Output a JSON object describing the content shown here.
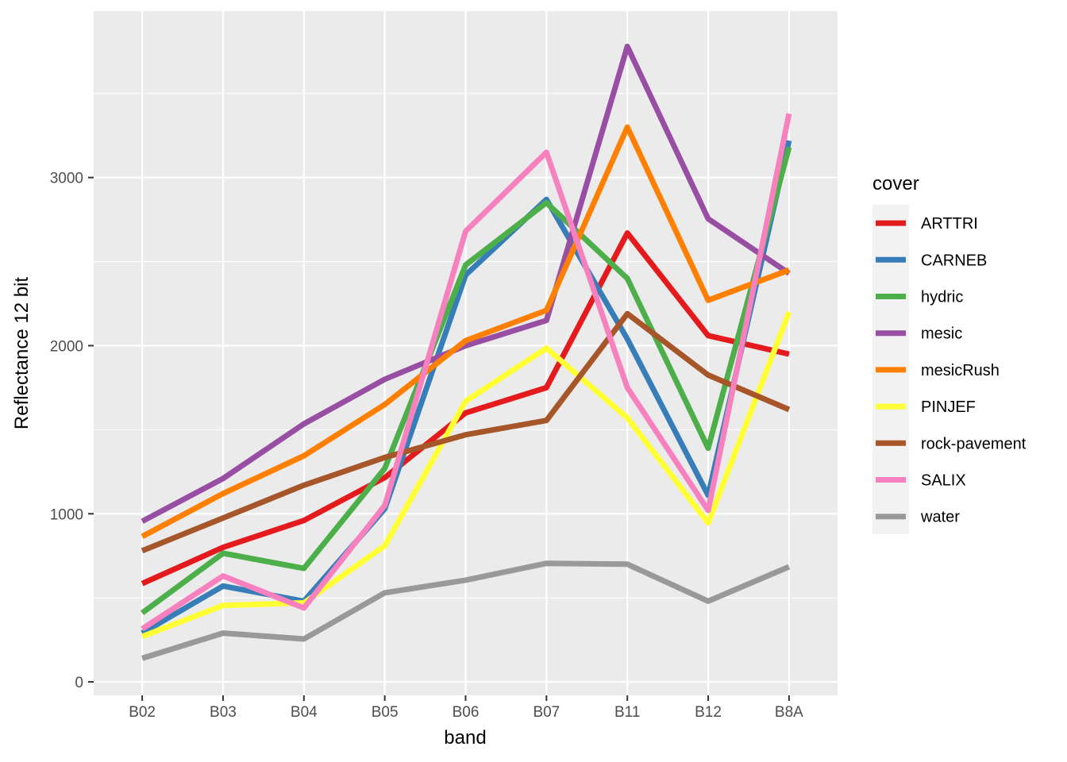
{
  "chart_data": {
    "type": "line",
    "title": "",
    "xlabel": "band",
    "ylabel": "Reflectance 12 bit",
    "categories": [
      "B02",
      "B03",
      "B04",
      "B05",
      "B06",
      "B07",
      "B11",
      "B12",
      "B8A"
    ],
    "ylim": [
      -80,
      3990
    ],
    "yticks": [
      0,
      1000,
      2000,
      3000
    ],
    "grid": true,
    "legend": {
      "title": "cover",
      "position": "right"
    },
    "series": [
      {
        "name": "ARTTRI",
        "color": "#E41A1C",
        "values": [
          585,
          800,
          960,
          1215,
          1600,
          1750,
          2670,
          2060,
          1950
        ]
      },
      {
        "name": "CARNEB",
        "color": "#377EB8",
        "values": [
          290,
          570,
          480,
          1030,
          2420,
          2870,
          2040,
          1110,
          3220
        ]
      },
      {
        "name": "hydric",
        "color": "#4DAF4A",
        "values": [
          410,
          765,
          675,
          1270,
          2480,
          2850,
          2400,
          1390,
          3180
        ]
      },
      {
        "name": "mesic",
        "color": "#984EA3",
        "values": [
          955,
          1210,
          1535,
          1800,
          2000,
          2150,
          3780,
          2755,
          2430
        ]
      },
      {
        "name": "mesicRush",
        "color": "#FF7F00",
        "values": [
          865,
          1120,
          1345,
          1650,
          2030,
          2210,
          3300,
          2270,
          2450
        ]
      },
      {
        "name": "PINJEF",
        "color": "#FFFF33",
        "values": [
          270,
          455,
          470,
          810,
          1670,
          1985,
          1570,
          945,
          2200
        ]
      },
      {
        "name": "rock-pavement",
        "color": "#A65628",
        "values": [
          780,
          975,
          1170,
          1335,
          1470,
          1555,
          2190,
          1825,
          1620
        ]
      },
      {
        "name": "SALIX",
        "color": "#F781BF",
        "values": [
          315,
          630,
          440,
          1050,
          2680,
          3150,
          1750,
          1020,
          3380
        ]
      },
      {
        "name": "water",
        "color": "#999999",
        "values": [
          140,
          290,
          255,
          530,
          605,
          705,
          700,
          480,
          685
        ]
      }
    ]
  }
}
